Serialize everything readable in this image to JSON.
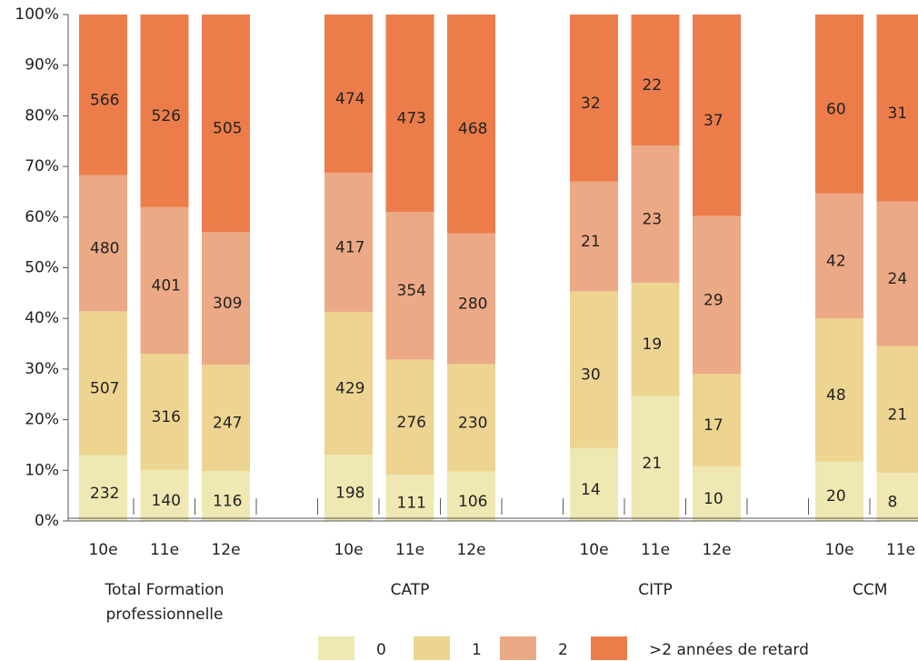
{
  "chart_data": {
    "type": "bar",
    "stacking": "percent",
    "groups": [
      {
        "name": "Total Formation professionnelle",
        "categories": [
          "10e",
          "11e",
          "12e"
        ]
      },
      {
        "name": "CATP",
        "categories": [
          "10e",
          "11e",
          "12e"
        ]
      },
      {
        "name": "CITP",
        "categories": [
          "10e",
          "11e",
          "12e"
        ]
      },
      {
        "name": "CCM",
        "categories": [
          "10e",
          "11e"
        ]
      }
    ],
    "series": [
      {
        "name": "0",
        "color": "#efe8b2",
        "values": [
          232,
          140,
          116,
          198,
          111,
          106,
          14,
          21,
          10,
          20,
          8
        ]
      },
      {
        "name": "1",
        "color": "#edd491",
        "values": [
          507,
          316,
          247,
          429,
          276,
          230,
          30,
          19,
          17,
          48,
          21
        ]
      },
      {
        "name": "2",
        "color": "#eba985",
        "values": [
          480,
          401,
          309,
          417,
          354,
          280,
          21,
          23,
          29,
          42,
          24
        ]
      },
      {
        "name": ">2 années de retard",
        "color": "#ec7d4a",
        "values": [
          566,
          526,
          505,
          474,
          473,
          468,
          32,
          22,
          37,
          60,
          31
        ]
      }
    ],
    "ylim": [
      0,
      100
    ],
    "yticks": [
      {
        "value": 0,
        "label": "0%"
      },
      {
        "value": 10,
        "label": "10%"
      },
      {
        "value": 20,
        "label": "20%"
      },
      {
        "value": 30,
        "label": "30%"
      },
      {
        "value": 40,
        "label": "40%"
      },
      {
        "value": 50,
        "label": "50%"
      },
      {
        "value": 60,
        "label": "60%"
      },
      {
        "value": 70,
        "label": "70%"
      },
      {
        "value": 80,
        "label": "80%"
      },
      {
        "value": 90,
        "label": "90%"
      },
      {
        "value": 100,
        "label": "100%"
      }
    ],
    "legend": "bottom"
  }
}
